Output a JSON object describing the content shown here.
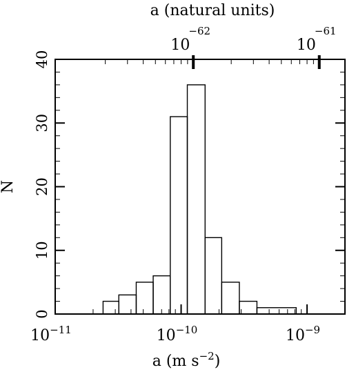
{
  "chart_data": {
    "type": "histogram",
    "x_scale": "log",
    "xlim": [
      1e-11,
      2e-09
    ],
    "ylim": [
      0,
      40
    ],
    "xlabel_main": "a (m s",
    "xlabel_exp": "−2",
    "xlabel_close": ")",
    "top_label": "a (natural units)",
    "ylabel": "N",
    "y_ticks": [
      {
        "value": 0,
        "label": "0"
      },
      {
        "value": 10,
        "label": "10"
      },
      {
        "value": 20,
        "label": "20"
      },
      {
        "value": 30,
        "label": "30"
      },
      {
        "value": 40,
        "label": "40"
      }
    ],
    "x_ticks": [
      {
        "value": 1e-11,
        "base": "10",
        "exp": "−11"
      },
      {
        "value": 1e-10,
        "base": "10",
        "exp": "−10"
      },
      {
        "value": 1e-09,
        "base": "10",
        "exp": "−9"
      }
    ],
    "top_ticks": [
      {
        "value": 1.25e-10,
        "base": "10",
        "exp": "−62"
      },
      {
        "value": 1.25e-09,
        "base": "10",
        "exp": "−61"
      }
    ],
    "bins": [
      {
        "left": 2.4e-11,
        "right": 3.2e-11,
        "count": 2
      },
      {
        "left": 3.2e-11,
        "right": 4.4e-11,
        "count": 3
      },
      {
        "left": 4.4e-11,
        "right": 6e-11,
        "count": 5
      },
      {
        "left": 6e-11,
        "right": 8.2e-11,
        "count": 6
      },
      {
        "left": 8.2e-11,
        "right": 1.12e-10,
        "count": 31
      },
      {
        "left": 1.12e-10,
        "right": 1.55e-10,
        "count": 36
      },
      {
        "left": 1.55e-10,
        "right": 2.1e-10,
        "count": 12
      },
      {
        "left": 2.1e-10,
        "right": 2.9e-10,
        "count": 5
      },
      {
        "left": 2.9e-10,
        "right": 4e-10,
        "count": 2
      },
      {
        "left": 4e-10,
        "right": 8.2e-10,
        "count": 1
      }
    ]
  }
}
